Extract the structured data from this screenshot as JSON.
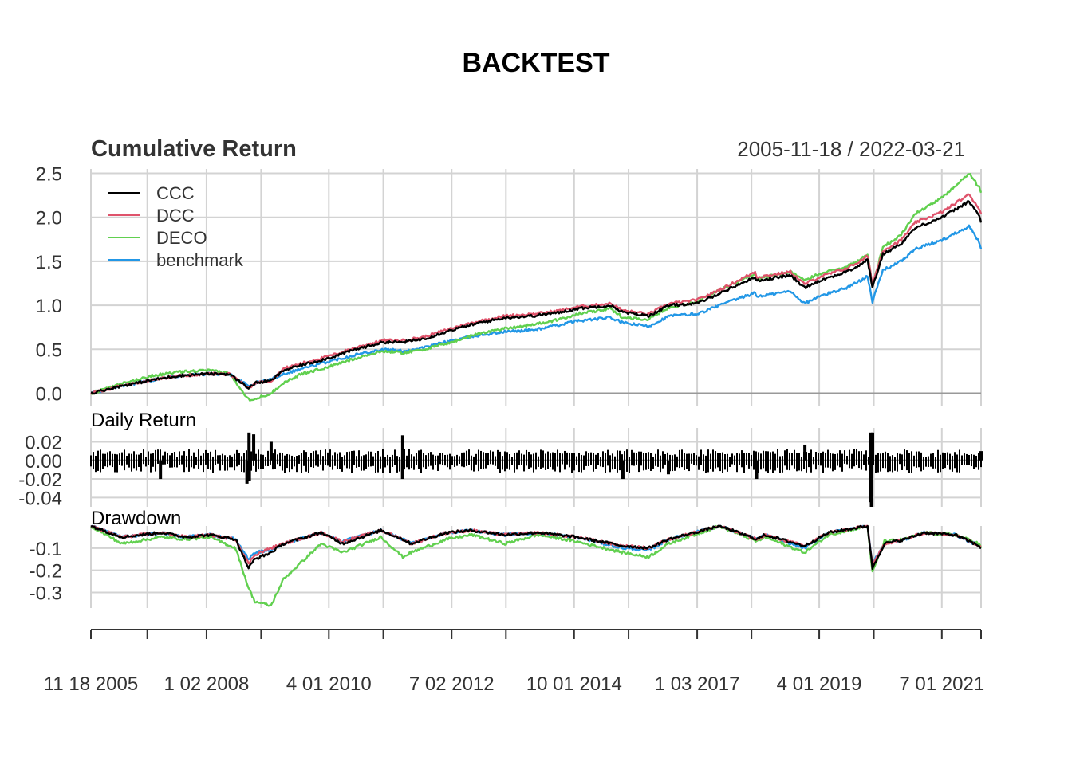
{
  "page_title": "BACKTEST",
  "panels": {
    "cumulative": {
      "title": "Cumulative Return",
      "date_range": "2005-11-18 / 2022-03-21",
      "yticks": [
        "0.0",
        "0.5",
        "1.0",
        "1.5",
        "2.0",
        "2.5"
      ],
      "ylim": [
        -0.15,
        2.55
      ]
    },
    "daily": {
      "title": "Daily Return",
      "yticks": [
        "0.02",
        "0.00",
        "-0.02",
        "-0.04"
      ],
      "ylim": [
        -0.05,
        0.035
      ]
    },
    "drawdown": {
      "title": "Drawdown",
      "yticks": [
        "-0.1",
        "-0.2",
        "-0.3"
      ],
      "ylim": [
        -0.37,
        0.0
      ]
    }
  },
  "x_axis": {
    "labels": [
      "11 18 2005",
      "1 02 2008",
      "4 01 2010",
      "7 02 2012",
      "10 01 2014",
      "1 03 2017",
      "4 01 2019",
      "7 01 2021"
    ]
  },
  "legend": {
    "placement": "top-left",
    "entries": [
      {
        "label": "CCC",
        "color": "#000000"
      },
      {
        "label": "DCC",
        "color": "#DF536B"
      },
      {
        "label": "DECO",
        "color": "#61D04F"
      },
      {
        "label": "benchmark",
        "color": "#2297E6"
      }
    ]
  },
  "chart_data": [
    {
      "type": "line",
      "title": "Cumulative Return",
      "x": [
        "2005-11-18",
        "2006-06-01",
        "2007-01-02",
        "2007-07-02",
        "2008-01-02",
        "2008-06-02",
        "2008-10-10",
        "2008-12-01",
        "2009-03-09",
        "2009-06-01",
        "2009-10-01",
        "2010-04-01",
        "2010-10-01",
        "2011-04-01",
        "2011-08-10",
        "2012-01-03",
        "2012-07-02",
        "2013-01-02",
        "2013-07-01",
        "2014-01-02",
        "2014-07-01",
        "2014-10-15",
        "2015-06-01",
        "2015-08-25",
        "2016-02-11",
        "2016-07-01",
        "2017-01-03",
        "2017-07-03",
        "2018-01-26",
        "2018-02-08",
        "2018-09-20",
        "2018-12-24",
        "2019-04-01",
        "2019-10-01",
        "2020-01-02",
        "2020-02-19",
        "2020-03-23",
        "2020-06-01",
        "2020-10-01",
        "2021-01-04",
        "2021-07-01",
        "2021-12-31",
        "2022-03-08",
        "2022-03-21"
      ],
      "series": [
        {
          "name": "CCC",
          "color": "#000000",
          "values": [
            0.0,
            0.08,
            0.15,
            0.2,
            0.22,
            0.22,
            0.06,
            0.12,
            0.14,
            0.26,
            0.32,
            0.4,
            0.5,
            0.58,
            0.58,
            0.62,
            0.72,
            0.8,
            0.86,
            0.88,
            0.92,
            0.96,
            1.0,
            0.92,
            0.88,
            1.0,
            1.02,
            1.16,
            1.32,
            1.28,
            1.34,
            1.2,
            1.28,
            1.38,
            1.46,
            1.52,
            1.2,
            1.58,
            1.7,
            1.88,
            2.0,
            2.18,
            2.02,
            1.94
          ]
        },
        {
          "name": "DCC",
          "color": "#DF536B",
          "values": [
            0.0,
            0.08,
            0.15,
            0.2,
            0.22,
            0.22,
            0.06,
            0.12,
            0.14,
            0.28,
            0.34,
            0.42,
            0.52,
            0.6,
            0.6,
            0.64,
            0.74,
            0.82,
            0.88,
            0.9,
            0.94,
            0.98,
            1.02,
            0.94,
            0.9,
            1.02,
            1.06,
            1.2,
            1.38,
            1.32,
            1.38,
            1.24,
            1.32,
            1.42,
            1.5,
            1.56,
            1.24,
            1.62,
            1.74,
            1.94,
            2.06,
            2.26,
            2.1,
            2.04
          ]
        },
        {
          "name": "DECO",
          "color": "#61D04F",
          "values": [
            0.0,
            0.1,
            0.2,
            0.24,
            0.26,
            0.23,
            -0.07,
            -0.06,
            0.0,
            0.12,
            0.22,
            0.3,
            0.4,
            0.48,
            0.46,
            0.5,
            0.58,
            0.68,
            0.74,
            0.78,
            0.84,
            0.9,
            0.96,
            0.86,
            0.84,
            0.98,
            1.04,
            1.2,
            1.36,
            1.3,
            1.38,
            1.28,
            1.36,
            1.44,
            1.52,
            1.58,
            1.22,
            1.66,
            1.8,
            2.04,
            2.22,
            2.5,
            2.34,
            2.28
          ]
        },
        {
          "name": "benchmark",
          "color": "#2297E6",
          "values": [
            0.0,
            0.08,
            0.15,
            0.2,
            0.22,
            0.22,
            0.08,
            0.12,
            0.16,
            0.22,
            0.28,
            0.36,
            0.44,
            0.5,
            0.48,
            0.52,
            0.6,
            0.66,
            0.7,
            0.72,
            0.78,
            0.82,
            0.86,
            0.8,
            0.76,
            0.88,
            0.9,
            1.02,
            1.14,
            1.1,
            1.16,
            1.02,
            1.1,
            1.2,
            1.28,
            1.34,
            1.04,
            1.4,
            1.5,
            1.64,
            1.74,
            1.9,
            1.72,
            1.64
          ]
        }
      ]
    },
    {
      "type": "bar",
      "title": "Daily Return",
      "x": [
        "2005-11-18",
        "2007-02-27",
        "2008-09-29",
        "2008-10-13",
        "2008-10-15",
        "2008-11-13",
        "2009-03-10",
        "2011-08-08",
        "2011-08-09",
        "2015-08-24",
        "2016-06-24",
        "2018-02-05",
        "2018-12-26",
        "2020-03-12",
        "2020-03-13",
        "2020-03-16",
        "2020-03-24",
        "2022-03-21"
      ],
      "values": [
        0.0,
        -0.02,
        -0.025,
        0.03,
        -0.022,
        0.028,
        0.02,
        -0.02,
        0.027,
        -0.02,
        -0.015,
        -0.02,
        0.017,
        -0.045,
        0.03,
        -0.05,
        0.03,
        0.01
      ]
    },
    {
      "type": "line",
      "title": "Drawdown",
      "x": [
        "2005-11-18",
        "2006-06-13",
        "2007-03-05",
        "2007-08-16",
        "2008-01-22",
        "2008-07-15",
        "2008-10-10",
        "2008-11-20",
        "2009-03-09",
        "2009-06-01",
        "2010-02-08",
        "2010-07-02",
        "2011-03-16",
        "2011-08-10",
        "2011-10-03",
        "2012-05-31",
        "2012-11-15",
        "2013-06-24",
        "2014-02-03",
        "2014-10-15",
        "2015-08-25",
        "2016-02-11",
        "2016-06-27",
        "2017-06-01",
        "2018-02-08",
        "2018-04-02",
        "2018-12-24",
        "2019-06-03",
        "2020-02-19",
        "2020-03-23",
        "2020-06-11",
        "2020-10-30",
        "2021-03-04",
        "2021-09-30",
        "2022-03-08",
        "2022-03-21"
      ],
      "series": [
        {
          "name": "CCC",
          "color": "#000000",
          "values": [
            0.0,
            -0.05,
            -0.03,
            -0.05,
            -0.04,
            -0.06,
            -0.19,
            -0.15,
            -0.12,
            -0.08,
            -0.03,
            -0.08,
            -0.02,
            -0.06,
            -0.08,
            -0.03,
            -0.02,
            -0.04,
            -0.03,
            -0.05,
            -0.09,
            -0.1,
            -0.06,
            0.0,
            -0.06,
            -0.04,
            -0.09,
            -0.03,
            0.0,
            -0.19,
            -0.08,
            -0.06,
            -0.03,
            -0.04,
            -0.09,
            -0.1
          ]
        },
        {
          "name": "DCC",
          "color": "#DF536B",
          "values": [
            0.0,
            -0.05,
            -0.03,
            -0.05,
            -0.04,
            -0.06,
            -0.17,
            -0.13,
            -0.1,
            -0.08,
            -0.03,
            -0.07,
            -0.02,
            -0.06,
            -0.08,
            -0.03,
            -0.02,
            -0.04,
            -0.03,
            -0.05,
            -0.09,
            -0.1,
            -0.06,
            0.0,
            -0.06,
            -0.04,
            -0.09,
            -0.03,
            0.0,
            -0.18,
            -0.08,
            -0.06,
            -0.03,
            -0.04,
            -0.09,
            -0.09
          ]
        },
        {
          "name": "DECO",
          "color": "#61D04F",
          "values": [
            0.0,
            -0.08,
            -0.05,
            -0.06,
            -0.05,
            -0.1,
            -0.28,
            -0.34,
            -0.36,
            -0.24,
            -0.08,
            -0.12,
            -0.05,
            -0.14,
            -0.12,
            -0.06,
            -0.04,
            -0.08,
            -0.04,
            -0.07,
            -0.12,
            -0.14,
            -0.08,
            0.0,
            -0.07,
            -0.05,
            -0.12,
            -0.04,
            0.0,
            -0.21,
            -0.07,
            -0.06,
            -0.03,
            -0.04,
            -0.08,
            -0.1
          ]
        },
        {
          "name": "benchmark",
          "color": "#2297E6",
          "values": [
            0.0,
            -0.05,
            -0.03,
            -0.05,
            -0.04,
            -0.06,
            -0.15,
            -0.12,
            -0.11,
            -0.08,
            -0.03,
            -0.07,
            -0.02,
            -0.06,
            -0.08,
            -0.03,
            -0.02,
            -0.04,
            -0.03,
            -0.05,
            -0.1,
            -0.11,
            -0.06,
            0.0,
            -0.06,
            -0.04,
            -0.1,
            -0.03,
            0.0,
            -0.17,
            -0.08,
            -0.06,
            -0.03,
            -0.04,
            -0.09,
            -0.1
          ]
        }
      ]
    }
  ]
}
